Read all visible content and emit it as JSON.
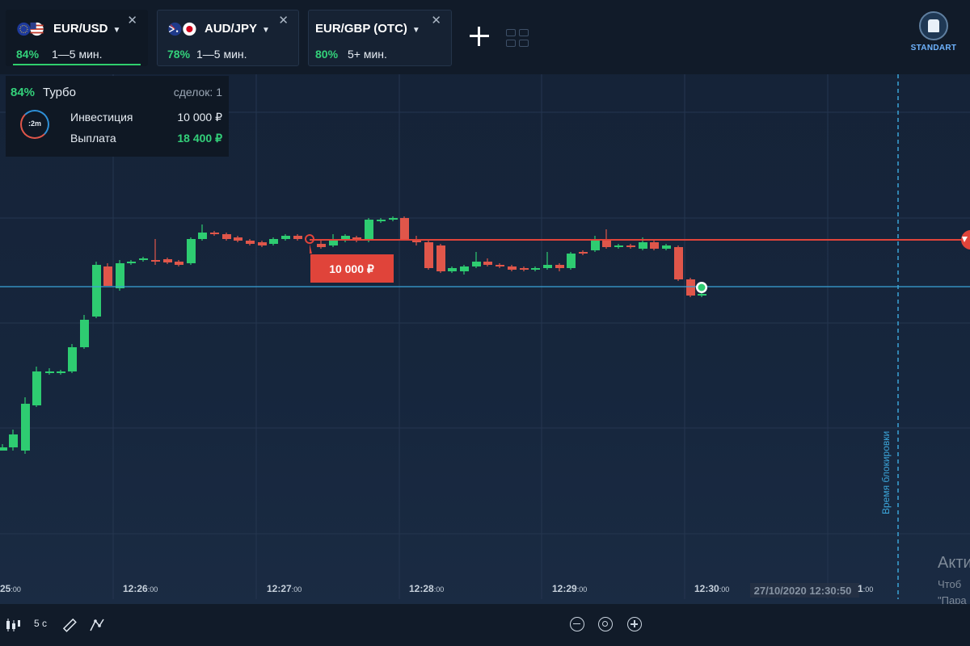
{
  "tabs": [
    {
      "name": "EUR/USD",
      "payout": "84%",
      "term": "1—5 мин.",
      "active": true
    },
    {
      "name": "AUD/JPY",
      "payout": "78%",
      "term": "1—5 мин.",
      "active": false
    },
    {
      "name": "EUR/GBP (OTC)",
      "payout": "80%",
      "term": "5+ мин.",
      "active": false
    }
  ],
  "account": {
    "label": "STANDART"
  },
  "trade_panel": {
    "payout": "84%",
    "mode": "Турбо",
    "deals": "сделок: 1",
    "timer": ":2m",
    "investment_label": "Инвестиция",
    "investment_value": "10 000 ₽",
    "payout_label": "Выплата",
    "payout_value": "18 400 ₽"
  },
  "chart": {
    "time_labels": [
      {
        "main": "25",
        "sec": ":00"
      },
      {
        "main": "12:26",
        "sec": ":00"
      },
      {
        "main": "12:27",
        "sec": ":00"
      },
      {
        "main": "12:28",
        "sec": ":00"
      },
      {
        "main": "12:29",
        "sec": ":00"
      },
      {
        "main": "12:30",
        "sec": ":00"
      },
      {
        "main": "1",
        "sec": ":00"
      }
    ],
    "timestamp": "27/10/2020 12:30:50",
    "lock_label": "Время блокировки",
    "deal_amount": "10 000 ₽",
    "colors": {
      "up": "#2ecc71",
      "down": "#e0564a",
      "current": "#3ba4d8",
      "strike": "#e0443a"
    }
  },
  "watermark": {
    "line1": "Акти",
    "line2": "Чтоб",
    "line3": "\"Пара"
  },
  "toolbar": {
    "timeframe": "5 с"
  }
}
